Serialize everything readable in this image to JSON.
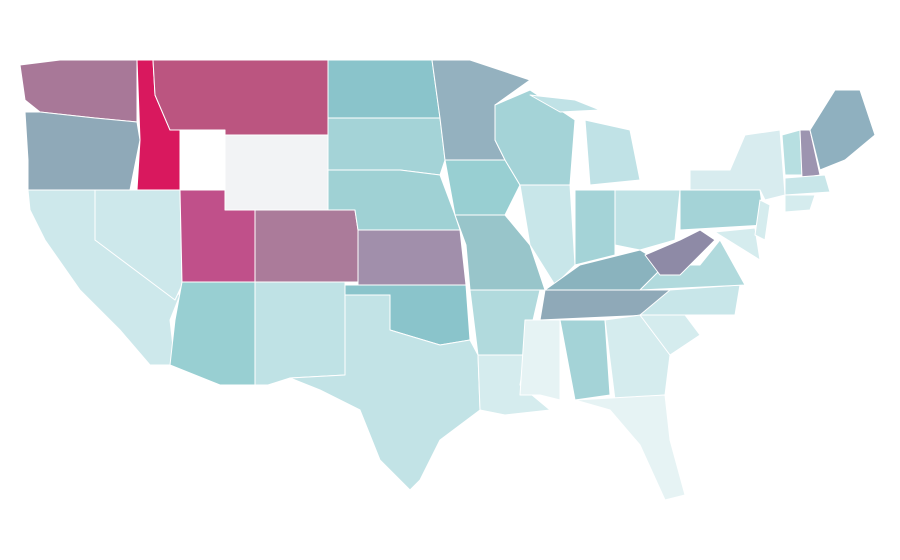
{
  "map": {
    "background": "#ffffff",
    "border_color": "#ffffff",
    "regions": [
      {
        "color": "#a87898"
      },
      {
        "color": "#8fa9b8"
      },
      {
        "color": "#cde8eb"
      },
      {
        "color": "#cde8eb"
      },
      {
        "color": "#d9185e"
      },
      {
        "color": "#bb5580"
      },
      {
        "color": "#f2f3f5"
      },
      {
        "color": "#c0508a"
      },
      {
        "color": "#ab7b9a"
      },
      {
        "color": "#98cfd2"
      },
      {
        "color": "#bfe2e5"
      },
      {
        "color": "#8ac4cb"
      },
      {
        "color": "#a4d3d7"
      },
      {
        "color": "#9fd1d4"
      },
      {
        "color": "#a18fab"
      },
      {
        "color": "#8ac4cb"
      },
      {
        "color": "#c2e3e6"
      },
      {
        "color": "#94b1bf"
      },
      {
        "color": "#98cfd2"
      },
      {
        "color": "#98c5ca"
      },
      {
        "color": "#b1dadd"
      },
      {
        "color": "#d5ecee"
      },
      {
        "color": "#a4d3d7"
      },
      {
        "color": "#c8e6e9"
      },
      {
        "color": "#c0e2e6"
      },
      {
        "color": "#a4d3d7"
      },
      {
        "color": "#bfe2e5"
      },
      {
        "color": "#8ab3be"
      },
      {
        "color": "#8fa9b8"
      },
      {
        "color": "#e6f3f4"
      },
      {
        "color": "#a4d3d7"
      },
      {
        "color": "#d5ecee"
      },
      {
        "color": "#e6f3f4"
      },
      {
        "color": "#d5ecee"
      },
      {
        "color": "#c8e6e9"
      },
      {
        "color": "#b1dadd"
      },
      {
        "color": "#8e8aa6"
      },
      {
        "color": "#a4d3d7"
      },
      {
        "color": "#d8ecef"
      },
      {
        "color": "#d5ecee"
      },
      {
        "color": "#d5ecee"
      },
      {
        "color": "#b7dfe1"
      },
      {
        "color": "#9d94b0"
      },
      {
        "color": "#8fb0bf"
      },
      {
        "color": "#c8e6e9"
      },
      {
        "color": "#d5ecee"
      },
      {
        "color": "#c0e2e6"
      }
    ]
  }
}
